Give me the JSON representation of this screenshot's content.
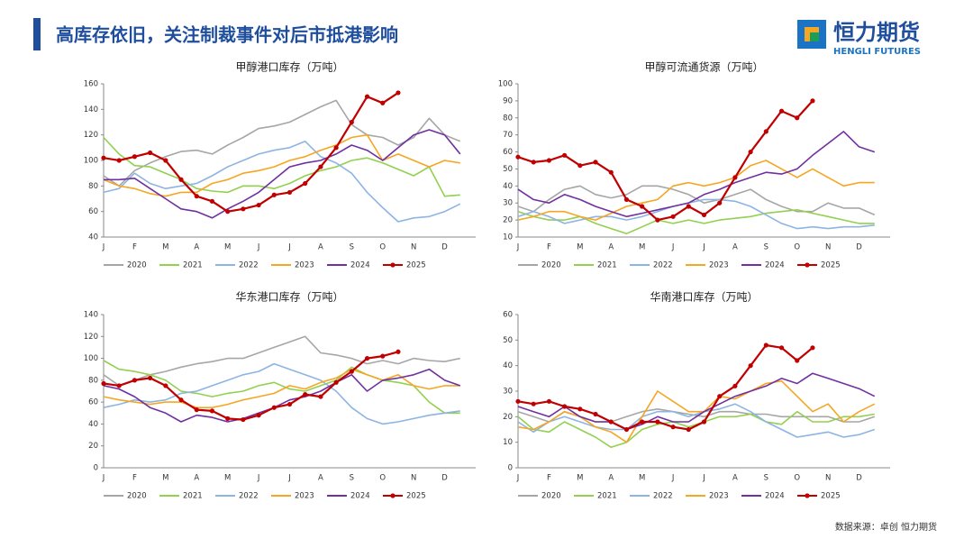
{
  "header": {
    "title": "高库存依旧，关注制裁事件对后市抵港影响",
    "logo": "恒力期货",
    "logo_sub": "HENGLI FUTURES"
  },
  "footer": {
    "source": "数据来源：卓创 恒力期货"
  },
  "chart_data": [
    {
      "type": "line",
      "title": "甲醇港口库存（万吨）",
      "categories": [
        "J",
        null,
        "F",
        null,
        "M",
        null,
        "A",
        null,
        "M",
        null,
        "J",
        null,
        "J",
        null,
        "A",
        null,
        "S",
        null,
        "O",
        null,
        "N",
        null,
        "D",
        null
      ],
      "ylim": [
        40,
        160
      ],
      "yticks": [
        40,
        60,
        80,
        100,
        120,
        140,
        160
      ],
      "series": [
        {
          "name": "2020",
          "color": "#a6a6a6",
          "values": [
            88,
            80,
            92,
            98,
            103,
            107,
            108,
            105,
            112,
            118,
            125,
            127,
            130,
            136,
            142,
            147,
            128,
            120,
            118,
            112,
            118,
            133,
            120,
            115
          ]
        },
        {
          "name": "2021",
          "color": "#92d050",
          "values": [
            118,
            105,
            96,
            95,
            90,
            85,
            78,
            76,
            75,
            80,
            80,
            78,
            82,
            88,
            92,
            95,
            100,
            102,
            98,
            93,
            88,
            95,
            72,
            73
          ]
        },
        {
          "name": "2022",
          "color": "#8db4e2",
          "values": [
            75,
            78,
            90,
            82,
            78,
            80,
            82,
            88,
            95,
            100,
            105,
            108,
            110,
            115,
            103,
            98,
            90,
            75,
            63,
            52,
            55,
            56,
            60,
            66
          ]
        },
        {
          "name": "2023",
          "color": "#f5a623",
          "values": [
            85,
            80,
            78,
            74,
            72,
            75,
            75,
            82,
            85,
            90,
            92,
            95,
            100,
            103,
            108,
            112,
            118,
            120,
            100,
            105,
            100,
            95,
            100,
            98
          ]
        },
        {
          "name": "2024",
          "color": "#7030a0",
          "values": [
            85,
            85,
            86,
            78,
            70,
            62,
            60,
            55,
            62,
            68,
            75,
            85,
            95,
            98,
            100,
            105,
            112,
            108,
            100,
            110,
            120,
            124,
            120,
            105
          ]
        },
        {
          "name": "2025",
          "color": "#c00000",
          "marker": true,
          "values": [
            102,
            100,
            103,
            106,
            100,
            85,
            72,
            68,
            60,
            62,
            65,
            73,
            75,
            82,
            95,
            110,
            130,
            150,
            145,
            153,
            null,
            null,
            null,
            null
          ]
        }
      ]
    },
    {
      "type": "line",
      "title": "甲醇可流通货源（万吨）",
      "categories": [
        "J",
        null,
        "F",
        null,
        "M",
        null,
        "A",
        null,
        "M",
        null,
        "J",
        null,
        "J",
        null,
        "A",
        null,
        "S",
        null,
        "O",
        null,
        "N",
        null,
        "D",
        null
      ],
      "ylim": [
        10,
        100
      ],
      "yticks": [
        10,
        20,
        30,
        40,
        50,
        60,
        70,
        80,
        90,
        100
      ],
      "series": [
        {
          "name": "2020",
          "color": "#a6a6a6",
          "values": [
            28,
            25,
            32,
            38,
            40,
            35,
            33,
            35,
            40,
            40,
            38,
            35,
            30,
            32,
            35,
            38,
            32,
            28,
            25,
            25,
            30,
            27,
            27,
            23
          ]
        },
        {
          "name": "2021",
          "color": "#92d050",
          "values": [
            25,
            22,
            20,
            20,
            22,
            18,
            15,
            12,
            16,
            20,
            18,
            20,
            18,
            20,
            21,
            22,
            24,
            25,
            26,
            24,
            22,
            20,
            18,
            18
          ]
        },
        {
          "name": "2022",
          "color": "#8db4e2",
          "values": [
            22,
            25,
            22,
            18,
            20,
            22,
            22,
            20,
            22,
            25,
            28,
            30,
            32,
            32,
            31,
            28,
            23,
            18,
            15,
            16,
            15,
            16,
            16,
            17
          ]
        },
        {
          "name": "2023",
          "color": "#f5a623",
          "values": [
            20,
            22,
            25,
            25,
            22,
            20,
            24,
            28,
            30,
            32,
            40,
            42,
            40,
            42,
            45,
            52,
            55,
            50,
            45,
            50,
            45,
            40,
            42,
            42
          ]
        },
        {
          "name": "2024",
          "color": "#7030a0",
          "values": [
            38,
            32,
            30,
            35,
            32,
            28,
            25,
            22,
            24,
            26,
            28,
            30,
            35,
            38,
            42,
            45,
            48,
            47,
            50,
            58,
            65,
            72,
            63,
            60
          ]
        },
        {
          "name": "2025",
          "color": "#c00000",
          "marker": true,
          "values": [
            57,
            54,
            55,
            58,
            52,
            54,
            48,
            32,
            28,
            20,
            22,
            28,
            23,
            30,
            45,
            60,
            72,
            84,
            80,
            90,
            null,
            null,
            null,
            null
          ]
        }
      ]
    },
    {
      "type": "line",
      "title": "华东港口库存（万吨）",
      "categories": [
        "J",
        null,
        "F",
        null,
        "M",
        null,
        "A",
        null,
        "M",
        null,
        "J",
        null,
        "J",
        null,
        "A",
        null,
        "S",
        null,
        "O",
        null,
        "N",
        null,
        "D",
        null
      ],
      "ylim": [
        0,
        140
      ],
      "yticks": [
        0,
        20,
        40,
        60,
        80,
        100,
        120,
        140
      ],
      "series": [
        {
          "name": "2020",
          "color": "#a6a6a6",
          "values": [
            85,
            75,
            80,
            85,
            88,
            92,
            95,
            97,
            100,
            100,
            105,
            110,
            115,
            120,
            105,
            103,
            100,
            95,
            98,
            95,
            100,
            98,
            97,
            100
          ]
        },
        {
          "name": "2021",
          "color": "#92d050",
          "values": [
            98,
            90,
            88,
            85,
            80,
            70,
            68,
            65,
            68,
            70,
            75,
            78,
            72,
            70,
            75,
            80,
            92,
            85,
            80,
            78,
            75,
            60,
            50,
            50
          ]
        },
        {
          "name": "2022",
          "color": "#8db4e2",
          "values": [
            55,
            58,
            62,
            60,
            62,
            68,
            70,
            75,
            80,
            85,
            88,
            95,
            90,
            85,
            80,
            70,
            55,
            45,
            40,
            42,
            45,
            48,
            50,
            52
          ]
        },
        {
          "name": "2023",
          "color": "#f5a623",
          "values": [
            65,
            62,
            60,
            58,
            60,
            60,
            55,
            55,
            58,
            62,
            65,
            68,
            75,
            72,
            78,
            82,
            90,
            85,
            80,
            85,
            75,
            72,
            75,
            75
          ]
        },
        {
          "name": "2024",
          "color": "#7030a0",
          "values": [
            75,
            72,
            65,
            55,
            50,
            42,
            48,
            46,
            42,
            45,
            50,
            55,
            62,
            65,
            70,
            78,
            85,
            70,
            80,
            82,
            85,
            90,
            80,
            75
          ]
        },
        {
          "name": "2025",
          "color": "#c00000",
          "marker": true,
          "values": [
            77,
            75,
            80,
            82,
            75,
            62,
            53,
            52,
            45,
            44,
            48,
            55,
            58,
            67,
            65,
            78,
            88,
            100,
            102,
            106,
            null,
            null,
            null,
            null
          ]
        }
      ]
    },
    {
      "type": "line",
      "title": "华南港口库存（万吨）",
      "categories": [
        "J",
        null,
        "F",
        null,
        "M",
        null,
        "A",
        null,
        "M",
        null,
        "J",
        null,
        "J",
        null,
        "A",
        null,
        "S",
        null,
        "O",
        null,
        "N",
        null,
        "D",
        null
      ],
      "ylim": [
        0,
        60
      ],
      "yticks": [
        0,
        10,
        20,
        30,
        40,
        50,
        60
      ],
      "series": [
        {
          "name": "2020",
          "color": "#a6a6a6",
          "values": [
            22,
            20,
            18,
            22,
            20,
            18,
            18,
            20,
            22,
            23,
            22,
            21,
            20,
            22,
            22,
            21,
            21,
            20,
            20,
            20,
            20,
            18,
            18,
            20
          ]
        },
        {
          "name": "2021",
          "color": "#92d050",
          "values": [
            20,
            15,
            14,
            18,
            15,
            12,
            8,
            10,
            15,
            17,
            18,
            16,
            18,
            20,
            20,
            21,
            18,
            17,
            22,
            18,
            18,
            20,
            20,
            21
          ]
        },
        {
          "name": "2022",
          "color": "#8db4e2",
          "values": [
            18,
            14,
            18,
            20,
            18,
            16,
            15,
            15,
            20,
            22,
            22,
            20,
            22,
            23,
            25,
            22,
            18,
            15,
            12,
            13,
            14,
            12,
            13,
            15
          ]
        },
        {
          "name": "2023",
          "color": "#f5a623",
          "values": [
            16,
            15,
            18,
            22,
            20,
            16,
            14,
            10,
            20,
            30,
            26,
            22,
            22,
            28,
            27,
            30,
            33,
            34,
            28,
            22,
            25,
            18,
            22,
            25
          ]
        },
        {
          "name": "2024",
          "color": "#7030a0",
          "values": [
            24,
            22,
            20,
            24,
            20,
            18,
            18,
            15,
            17,
            20,
            18,
            18,
            22,
            25,
            28,
            30,
            32,
            35,
            33,
            37,
            35,
            33,
            31,
            28
          ]
        },
        {
          "name": "2025",
          "color": "#c00000",
          "marker": true,
          "values": [
            26,
            25,
            26,
            24,
            23,
            21,
            18,
            15,
            18,
            18,
            16,
            15,
            18,
            28,
            32,
            40,
            48,
            47,
            42,
            47,
            null,
            null,
            null,
            null
          ]
        }
      ]
    }
  ]
}
